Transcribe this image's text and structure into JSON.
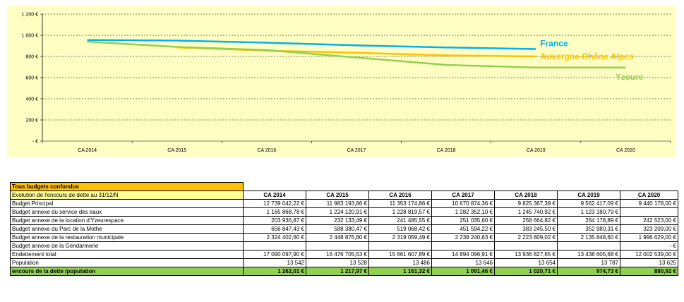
{
  "chart_data": {
    "type": "line",
    "categories": [
      "CA 2014",
      "CA 2015",
      "CA 2016",
      "CA 2017",
      "CA 2018",
      "CA 2019",
      "CA 2020"
    ],
    "y_ticks": [
      "- €",
      "200 €",
      "400 €",
      "600 €",
      "800 €",
      "1 000 €",
      "1 200 €"
    ],
    "ylim": [
      0,
      1200
    ],
    "grid": true,
    "series": [
      {
        "name": "France",
        "color": "#00b0f0",
        "values": [
          955,
          950,
          930,
          905,
          885,
          870,
          null
        ]
      },
      {
        "name": "Auvergne-Rhône Alpes",
        "color": "#ffc000",
        "values": [
          null,
          885,
          855,
          835,
          810,
          800,
          null
        ]
      },
      {
        "name": "Yzeure",
        "color": "#92d050",
        "values": [
          940,
          890,
          860,
          790,
          720,
          695,
          695
        ]
      }
    ]
  },
  "table": {
    "section_title": "Tous budgets confondus",
    "title": "Evolution de l'encours de dette au 31/12/N",
    "years": [
      "CA 2014",
      "CA 2015",
      "CA 2016",
      "CA 2017",
      "CA 2018",
      "CA 2019",
      "CA 2020"
    ],
    "rows": [
      {
        "label": "Budget Principal",
        "values": [
          "12 739 042,22 €",
          "11 983 193,86 €",
          "11 353 174,86 €",
          "10 670 874,36 €",
          "9 825 367,39 €",
          "9 562 417,09 €",
          "9 440 178,00 €"
        ]
      },
      {
        "label": "Budget annexe du service des eaux",
        "values": [
          "1 165 868,78 €",
          "1 224 120,91 €",
          "1 228 819,57 €",
          "1 282 352,10 €",
          "1 245 740,92 €",
          "1 123 180,79 €",
          ""
        ]
      },
      {
        "label": "Budget annexe de la location d'Yzeurespace",
        "values": [
          "203 936,87 €",
          "232 133,49 €",
          "241 485,55 €",
          "251 035,60 €",
          "258 664,82 €",
          "264 178,89 €",
          "242 523,00 €"
        ]
      },
      {
        "label": "Budget annexe du Parc de la Mothe",
        "values": [
          "656 847,43 €",
          "588 380,47 €",
          "519 068,42 €",
          "451 594,22 €",
          "383 245,50 €",
          "352 980,31 €",
          "323 209,00 €"
        ]
      },
      {
        "label": "Budget annexe de la restauration municipale",
        "values": [
          "2 324 402,60 €",
          "2 448 876,80 €",
          "2 319 059,49 €",
          "2 238 240,63 €",
          "2 223 809,02 €",
          "2 135 848,60 €",
          "1 996 629,00 €"
        ]
      },
      {
        "label": "Budget annexe de la Gendarmerie",
        "values": [
          "",
          "",
          "",
          "",
          "",
          "",
          "- €"
        ]
      },
      {
        "label": "Endettement total",
        "values": [
          "17 090 097,90 €",
          "16 476 705,53 €",
          "15 661 607,89 €",
          "14 894 096,91 €",
          "13 936 827,65 €",
          "13 438 605,68 €",
          "12 002 539,00 €"
        ]
      },
      {
        "label": "Population",
        "values": [
          "13 542",
          "13 528",
          "13 486",
          "13 646",
          "13 654",
          "13 787",
          "13 625"
        ]
      }
    ],
    "total_row": {
      "label": "encours de la dette /population",
      "values": [
        "1 262,01 €",
        "1 217,97 €",
        "1 161,32 €",
        "1 091,46 €",
        "1 020,71 €",
        "974,73 €",
        "880,92 €"
      ]
    }
  }
}
